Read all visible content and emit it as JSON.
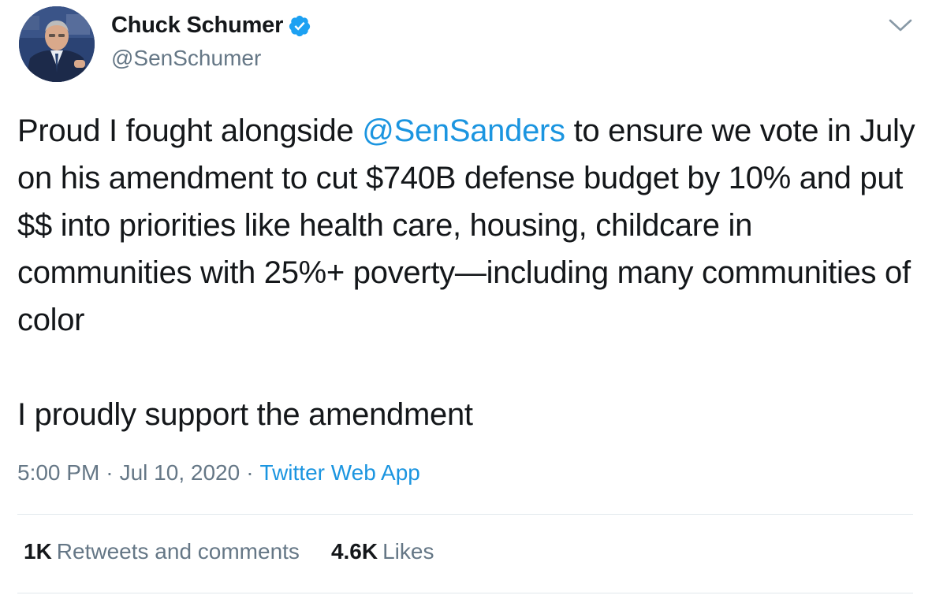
{
  "author": {
    "display_name": "Chuck Schumer",
    "handle": "@SenSchumer",
    "verified": true,
    "avatar_icon": "profile-photo",
    "verified_icon": "verified-badge-icon"
  },
  "menu_icon": "chevron-down-icon",
  "tweet": {
    "line1_pre": "Proud I fought alongside ",
    "mention": "@SenSanders",
    "line1_post": " to ensure we vote in July on his amendment to cut $740B defense budget by 10% and put $$ into priorities like health care, housing, childcare in communities with 25%+ poverty—including many communities of color",
    "line2": "I proudly support the amendment"
  },
  "meta": {
    "time": "5:00 PM",
    "separator": "·",
    "date": "Jul 10, 2020",
    "source": "Twitter Web App"
  },
  "stats": {
    "retweets_count": "1K",
    "retweets_label": "Retweets and comments",
    "likes_count": "4.6K",
    "likes_label": "Likes"
  },
  "colors": {
    "link": "#1b95e0",
    "secondary_text": "#657786",
    "primary_text": "#14171a",
    "divider": "#e1e8ed"
  }
}
